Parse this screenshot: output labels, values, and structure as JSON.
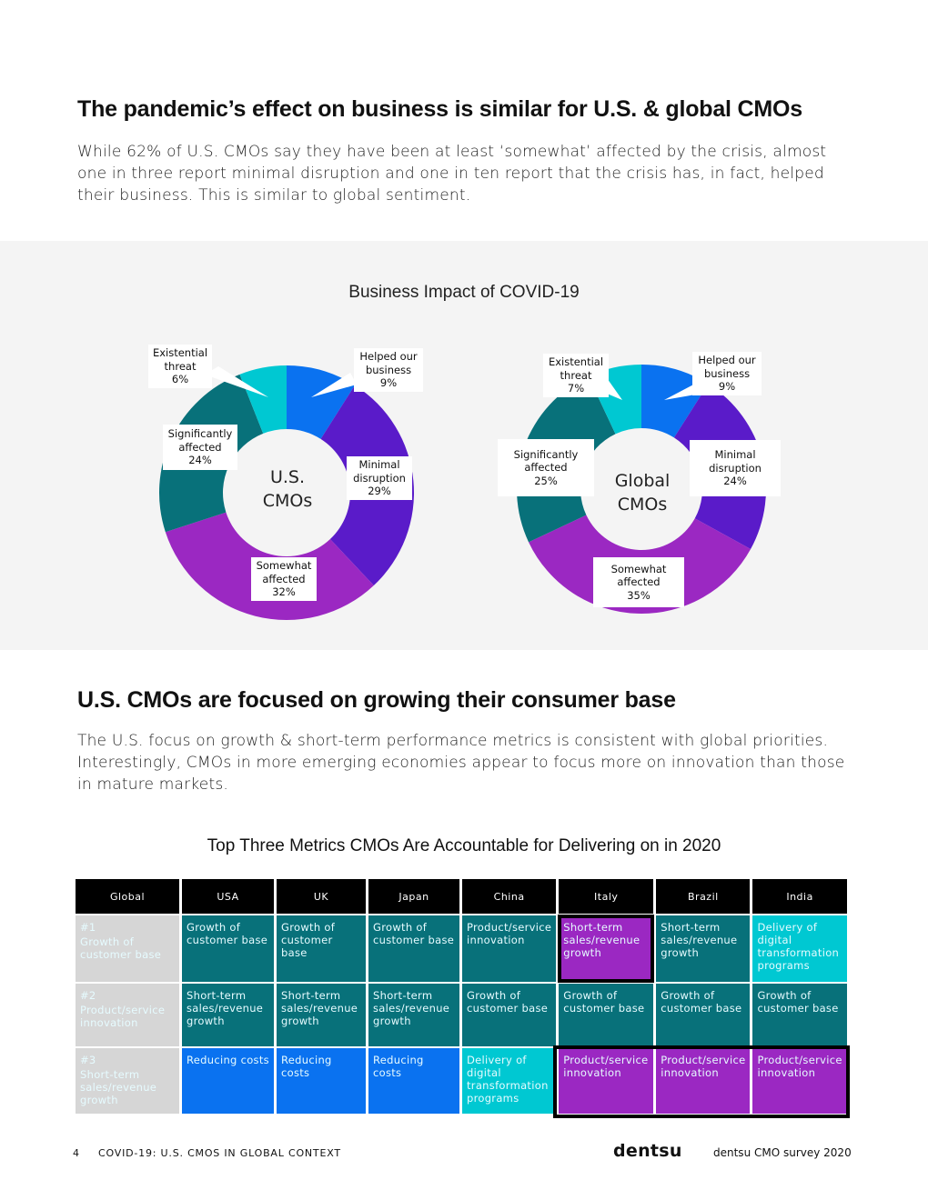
{
  "section1": {
    "title": "The pandemic’s effect on business is similar for U.S. & global CMOs",
    "body": "While 62% of U.S. CMOs say they have been at least ‘somewhat’ affected by the crisis, almost one in three report minimal disruption and one in ten report that the crisis has, in fact, helped their business. This is similar to global sentiment."
  },
  "chart_data": {
    "type": "pie",
    "title": "Business Impact of COVID-19",
    "categories": [
      "Helped our business",
      "Minimal disruption",
      "Somewhat affected",
      "Significantly affected",
      "Existential threat"
    ],
    "colors": [
      "#0a72f0",
      "#5a1bc9",
      "#9b28c2",
      "#08717a",
      "#00c8d2"
    ],
    "series": [
      {
        "name": "U.S. CMOs",
        "center_label": [
          "U.S.",
          "CMOs"
        ],
        "values": [
          9,
          29,
          32,
          24,
          6
        ],
        "labels": [
          [
            "Helped our",
            "business",
            "9%"
          ],
          [
            "Minimal",
            "disruption",
            "29%"
          ],
          [
            "Somewhat",
            "affected",
            "32%"
          ],
          [
            "Significantly",
            "affected",
            "24%"
          ],
          [
            "Existential",
            "threat",
            "6%"
          ]
        ]
      },
      {
        "name": "Global CMOs",
        "center_label": [
          "Global",
          "CMOs"
        ],
        "values": [
          9,
          24,
          35,
          25,
          7
        ],
        "labels": [
          [
            "Helped our",
            "business",
            "9%"
          ],
          [
            "Minimal",
            "disruption",
            "24%"
          ],
          [
            "Somewhat",
            "affected",
            "35%"
          ],
          [
            "Significantly",
            "affected",
            "25%"
          ],
          [
            "Existential",
            "threat",
            "7%"
          ]
        ]
      }
    ]
  },
  "section2": {
    "title": "U.S. CMOs are focused on growing their consumer base",
    "body": "The U.S. focus on growth & short-term performance metrics is consistent with global priorities. Interestingly, CMOs in more emerging economies appear to focus more on innovation than those in mature markets."
  },
  "table": {
    "title": "Top Three Metrics CMOs Are Accountable for Delivering on in 2020",
    "headers": [
      "Global",
      "USA",
      "UK",
      "Japan",
      "China",
      "Italy",
      "Brazil",
      "India"
    ],
    "rows": [
      {
        "rank": "#1",
        "label": "Growth of customer base",
        "cells": [
          "Growth of customer base",
          "Growth of customer base",
          "Growth of customer base",
          "Product/service innovation",
          "Short-term sales/revenue growth",
          "Short-term sales/revenue growth",
          "Delivery of digital transformation programs"
        ]
      },
      {
        "rank": "#2",
        "label": "Product/service innovation",
        "cells": [
          "Short-term sales/revenue growth",
          "Short-term sales/revenue growth",
          "Short-term sales/revenue growth",
          "Growth of customer base",
          "Growth of customer base",
          "Growth of customer base",
          "Growth of customer base"
        ]
      },
      {
        "rank": "#3",
        "label": "Short-term sales/revenue growth",
        "cells": [
          "Reducing costs",
          "Reducing costs",
          "Reducing costs",
          "Delivery of digital transformation programs",
          "Product/service innovation",
          "Product/service innovation",
          "Product/service innovation"
        ]
      }
    ],
    "cell_colors": {
      "Growth of customer base": "#08717a",
      "Short-term sales/revenue growth": "#08717a",
      "Product/service innovation": "#08717a",
      "Reducing costs": "#0a72f0",
      "Delivery of digital transformation programs": "#00c8d2",
      "highlight": "#9b28c2"
    }
  },
  "footer": {
    "page_number": "4",
    "section": "COVID-19: U.S. CMOS IN GLOBAL CONTEXT",
    "brand": "dentsu",
    "survey": "dentsu CMO survey 2020"
  }
}
